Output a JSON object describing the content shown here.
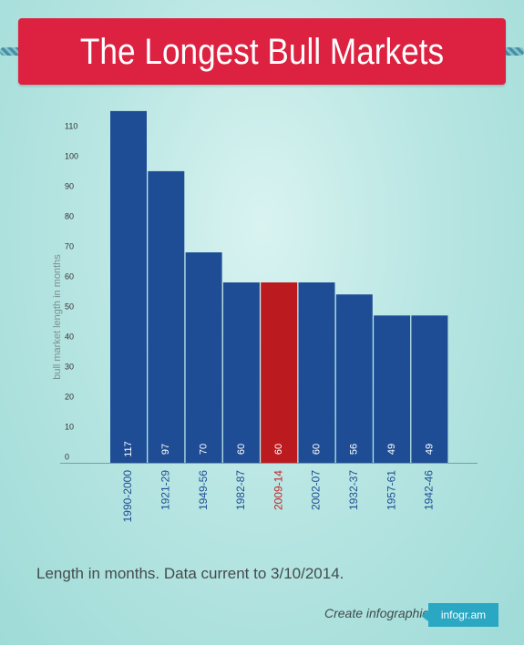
{
  "header": {
    "title": "The Longest Bull Markets"
  },
  "chart_data": {
    "type": "bar",
    "title": "The Longest Bull Markets",
    "xlabel": "",
    "ylabel": "bull market length in months",
    "categories": [
      "1990-2000",
      "1921-29",
      "1949-56",
      "1982-87",
      "2009-14",
      "2002-07",
      "1932-37",
      "1957-61",
      "1942-46"
    ],
    "values": [
      117,
      97,
      70,
      60,
      60,
      60,
      56,
      49,
      49
    ],
    "data_labels": [
      "117",
      "97",
      "70",
      "60",
      "60",
      "60",
      "56",
      "49",
      "49"
    ],
    "highlight": "2009-14",
    "ylim": [
      0,
      120
    ],
    "yticks": [
      "0",
      "10",
      "20",
      "30",
      "40",
      "50",
      "60",
      "70",
      "80",
      "90",
      "100",
      "110"
    ],
    "ytick_values": [
      0,
      10,
      20,
      30,
      40,
      50,
      60,
      70,
      80,
      90,
      100,
      110
    ],
    "grid": false,
    "legend": "none",
    "colors": {
      "bar": "#1e4d95",
      "highlight": "#bb1a1e",
      "highlight_label": "#c0262a",
      "label": "#1e4d95"
    }
  },
  "footer": {
    "note": "Length in months. Data current to 3/10/2014.",
    "create_link": "Create infographics",
    "brand": "infogr.am"
  }
}
